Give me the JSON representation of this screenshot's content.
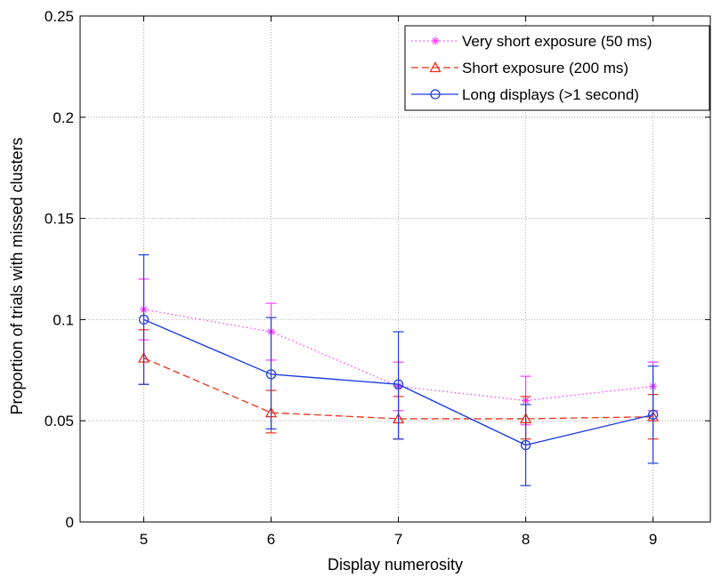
{
  "chart_data": {
    "type": "line",
    "title": "",
    "xlabel": "Display numerosity",
    "ylabel": "Proportion of trials with missed clusters",
    "x": [
      5,
      6,
      7,
      8,
      9
    ],
    "xlim": [
      4.5,
      9.45
    ],
    "ylim": [
      0,
      0.25
    ],
    "xticks": [
      "5",
      "6",
      "7",
      "8",
      "9"
    ],
    "yticks": [
      {
        "value": 0,
        "label": "0"
      },
      {
        "value": 0.05,
        "label": "0.05"
      },
      {
        "value": 0.1,
        "label": "0.1"
      },
      {
        "value": 0.15,
        "label": "0.15"
      },
      {
        "value": 0.2,
        "label": "0.2"
      },
      {
        "value": 0.25,
        "label": "0.25"
      }
    ],
    "grid": true,
    "legend_position": "top-right",
    "series": [
      {
        "name": "Very short exposure (50 ms)",
        "color": "#ff3cff",
        "style": "dotted",
        "marker": "star",
        "values": [
          0.105,
          0.094,
          0.067,
          0.06,
          0.067
        ],
        "err_low": [
          0.09,
          0.08,
          0.055,
          0.048,
          0.055
        ],
        "err_high": [
          0.12,
          0.108,
          0.079,
          0.072,
          0.079
        ]
      },
      {
        "name": "Short exposure (200 ms)",
        "color": "#e8331a",
        "style": "dashed",
        "marker": "triangle",
        "values": [
          0.081,
          0.054,
          0.051,
          0.051,
          0.052
        ],
        "err_low": [
          0.068,
          0.044,
          0.041,
          0.041,
          0.041
        ],
        "err_high": [
          0.095,
          0.065,
          0.062,
          0.062,
          0.063
        ]
      },
      {
        "name": "Long displays (>1 second)",
        "color": "#1f3fe0",
        "style": "solid",
        "marker": "circle",
        "values": [
          0.1,
          0.073,
          0.068,
          0.038,
          0.053
        ],
        "err_low": [
          0.068,
          0.046,
          0.041,
          0.018,
          0.029
        ],
        "err_high": [
          0.132,
          0.101,
          0.094,
          0.058,
          0.077
        ]
      }
    ]
  }
}
